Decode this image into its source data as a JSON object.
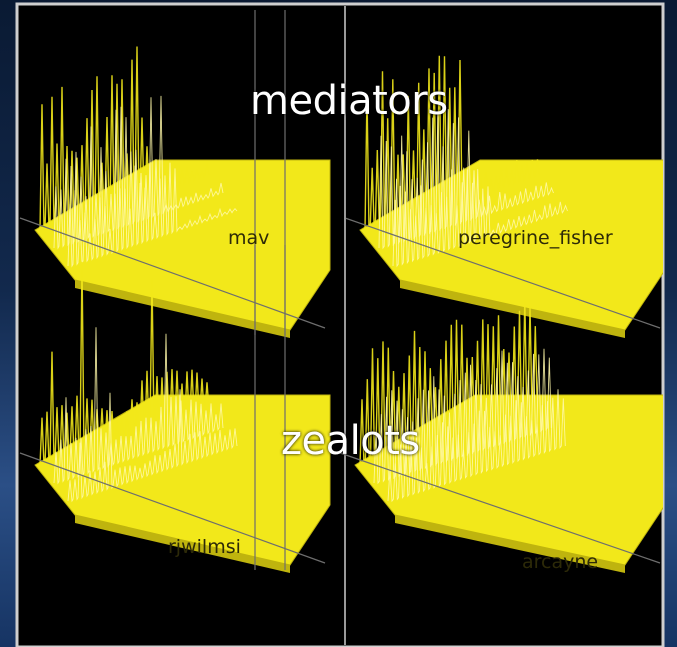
{
  "group_labels": {
    "top": "mediators",
    "bottom": "zealots"
  },
  "colors": {
    "surface_fill": "#f2e81a",
    "surface_shadow": "#bfb40e",
    "wire": "#fff8a8",
    "background_panel": "#000000",
    "divider": "#9a9a9a",
    "slide_background": "#14305a"
  },
  "chart_data": [
    {
      "type": "area",
      "name": "mav",
      "profile": "dense-spikes-back-left",
      "title": "",
      "xlabel": "",
      "ylabel": ""
    },
    {
      "type": "area",
      "name": "peregrine_fisher",
      "profile": "dense-spikes-back",
      "title": "",
      "xlabel": "",
      "ylabel": ""
    },
    {
      "type": "area",
      "name": "rjwilmsi",
      "profile": "few-tall-spikes-and-ridge",
      "title": "",
      "xlabel": "",
      "ylabel": ""
    },
    {
      "type": "area",
      "name": "arcayne",
      "profile": "rolling-wave-ridges",
      "title": "",
      "xlabel": "",
      "ylabel": ""
    }
  ]
}
